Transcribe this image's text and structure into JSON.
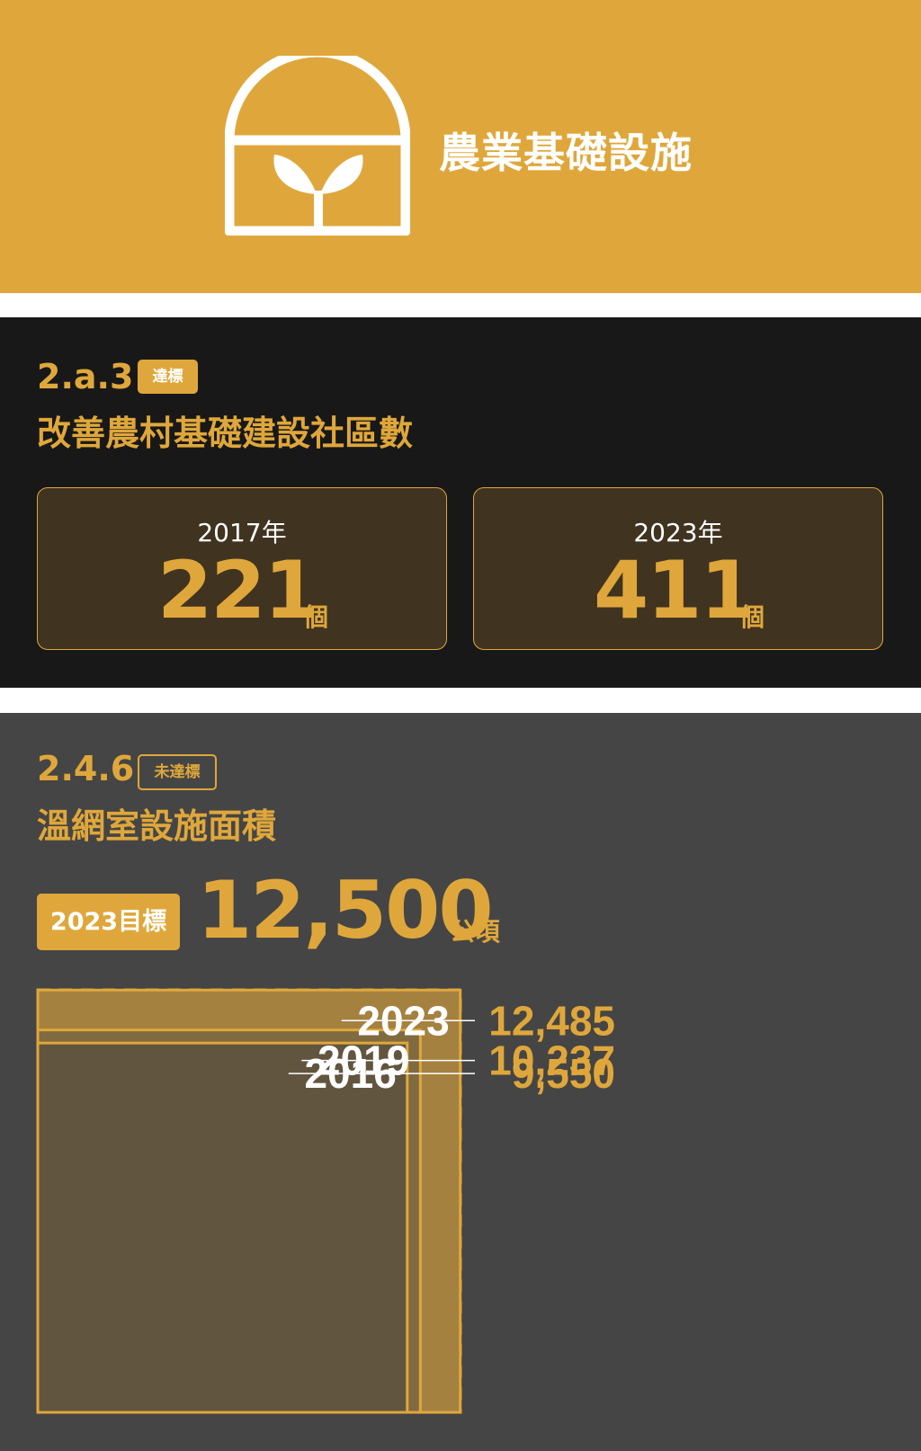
{
  "header": {
    "title": "農業基礎設施",
    "icon": "greenhouse-sprout-icon",
    "background_color": "#dfa73b"
  },
  "indicator_1": {
    "code": "2.a.3",
    "status": "達標",
    "title": "改善農村基礎建設社區數",
    "cards": [
      {
        "year": "2017年",
        "value": "221",
        "unit": "個"
      },
      {
        "year": "2023年",
        "value": "411",
        "unit": "個"
      }
    ]
  },
  "indicator_2": {
    "code": "2.4.6",
    "status": "未達標",
    "title": "溫網室設施面積",
    "target_label": "2023目標",
    "target_value": "12,500",
    "target_unit": "公頃",
    "accent_color": "#dfa73b"
  },
  "chart_data": {
    "type": "area",
    "target": 12500,
    "series": [
      {
        "year": "2023",
        "value": 12485,
        "value_label": "12,485"
      },
      {
        "year": "2019",
        "value": 10237,
        "value_label": "10,237"
      },
      {
        "year": "2016",
        "value": 9550,
        "value_label": "9,550"
      }
    ]
  }
}
